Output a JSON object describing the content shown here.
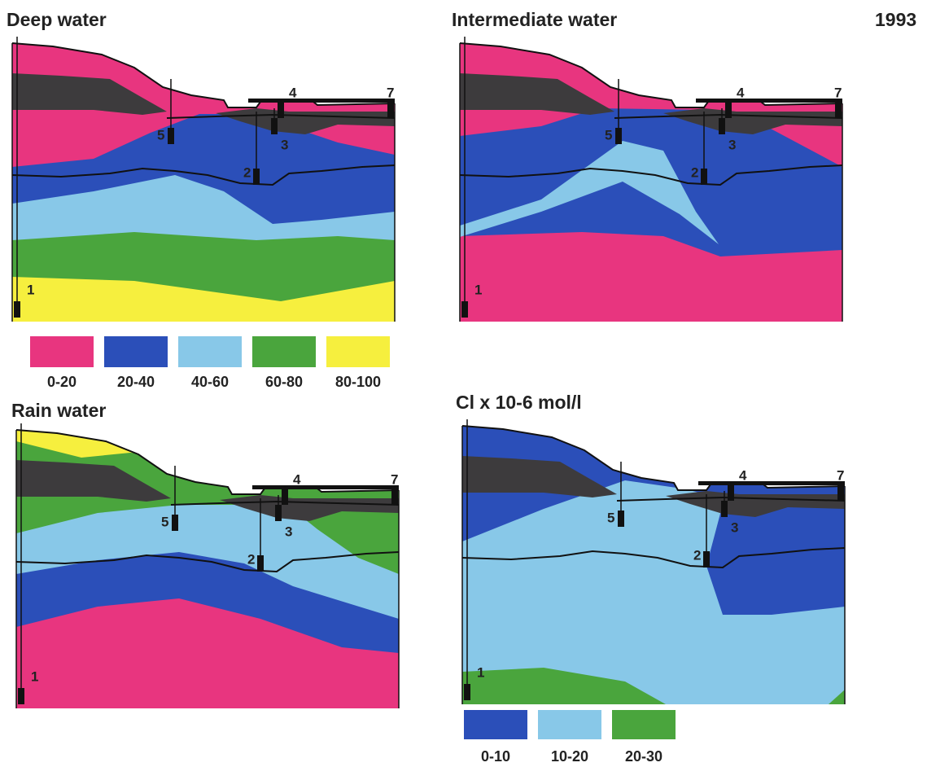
{
  "year": "1993",
  "panels": [
    {
      "title": "Deep water",
      "wells": [
        "1",
        "2",
        "3",
        "4",
        "5",
        "7"
      ]
    },
    {
      "title": "Intermediate water",
      "wells": [
        "1",
        "2",
        "3",
        "4",
        "5",
        "7"
      ]
    },
    {
      "title": "Rain water",
      "wells": [
        "1",
        "2",
        "3",
        "4",
        "5",
        "7"
      ]
    },
    {
      "title": "Cl x 10-6 mol/l",
      "wells": [
        "1",
        "2",
        "3",
        "4",
        "5",
        "7"
      ]
    }
  ],
  "legends": [
    {
      "items": [
        {
          "label": "0-20",
          "color": "#e8357f"
        },
        {
          "label": "20-40",
          "color": "#2b4fb9"
        },
        {
          "label": "40-60",
          "color": "#88c8e8"
        },
        {
          "label": "60-80",
          "color": "#4aa53d"
        },
        {
          "label": "80-100",
          "color": "#f6ef3e"
        }
      ]
    },
    {
      "items": [
        {
          "label": "0-10",
          "color": "#2b4fb9"
        },
        {
          "label": "10-20",
          "color": "#88c8e8"
        },
        {
          "label": "20-30",
          "color": "#4aa53d"
        }
      ]
    }
  ]
}
